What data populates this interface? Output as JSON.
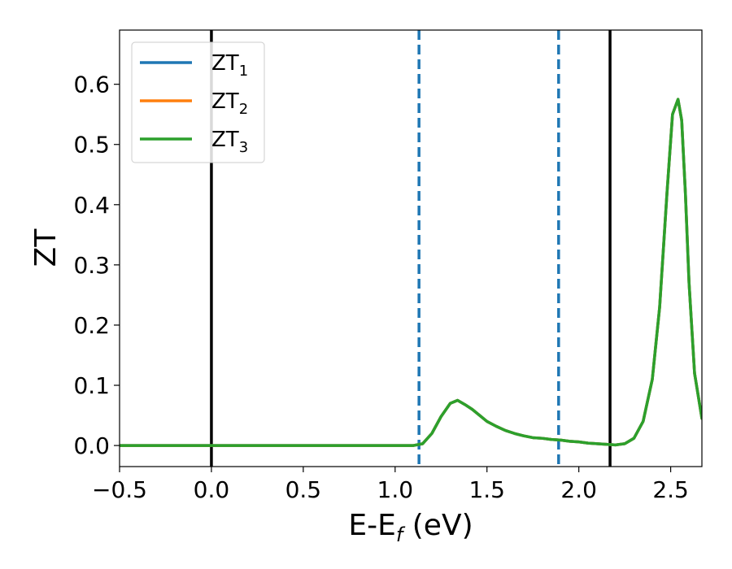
{
  "chart_data": {
    "type": "line",
    "xlabel": "E-E",
    "xlabel_sub": "f",
    "xlabel_unit": " (eV)",
    "ylabel": "ZT",
    "xlim": [
      -0.5,
      2.67
    ],
    "ylim": [
      -0.035,
      0.69
    ],
    "x_ticks": [
      -0.5,
      0.0,
      0.5,
      1.0,
      1.5,
      2.0,
      2.5
    ],
    "x_tick_labels": [
      "−0.5",
      "0.0",
      "0.5",
      "1.0",
      "1.5",
      "2.0",
      "2.5"
    ],
    "y_ticks": [
      0.0,
      0.1,
      0.2,
      0.3,
      0.4,
      0.5,
      0.6
    ],
    "y_tick_labels": [
      "0.0",
      "0.1",
      "0.2",
      "0.3",
      "0.4",
      "0.5",
      "0.6"
    ],
    "grid": false,
    "legend_position": "top-left",
    "vertical_lines": [
      {
        "x": 0.0,
        "style": "solid",
        "color": "#000000"
      },
      {
        "x": 1.13,
        "style": "dashed",
        "color": "#1f77b4"
      },
      {
        "x": 1.89,
        "style": "dashed",
        "color": "#1f77b4"
      },
      {
        "x": 2.17,
        "style": "solid",
        "color": "#000000"
      }
    ],
    "x": [
      -0.5,
      0.0,
      0.5,
      1.0,
      1.1,
      1.15,
      1.2,
      1.25,
      1.3,
      1.34,
      1.38,
      1.42,
      1.46,
      1.5,
      1.55,
      1.6,
      1.65,
      1.7,
      1.75,
      1.8,
      1.85,
      1.9,
      1.95,
      2.0,
      2.05,
      2.1,
      2.15,
      2.2,
      2.25,
      2.3,
      2.35,
      2.4,
      2.44,
      2.48,
      2.51,
      2.54,
      2.56,
      2.58,
      2.6,
      2.63,
      2.67
    ],
    "series": [
      {
        "name": "ZT",
        "sub": "1",
        "color": "#1f77b4",
        "values": [
          0.0,
          0.0,
          0.0,
          0.0,
          0.0,
          0.003,
          0.02,
          0.048,
          0.07,
          0.075,
          0.068,
          0.06,
          0.05,
          0.04,
          0.032,
          0.025,
          0.02,
          0.016,
          0.013,
          0.012,
          0.01,
          0.009,
          0.007,
          0.006,
          0.004,
          0.003,
          0.002,
          0.001,
          0.003,
          0.012,
          0.04,
          0.11,
          0.23,
          0.42,
          0.55,
          0.575,
          0.54,
          0.42,
          0.27,
          0.12,
          0.045
        ]
      },
      {
        "name": "ZT",
        "sub": "2",
        "color": "#ff7f0e",
        "values": [
          0.0,
          0.0,
          0.0,
          0.0,
          0.0,
          0.003,
          0.02,
          0.048,
          0.07,
          0.075,
          0.068,
          0.06,
          0.05,
          0.04,
          0.032,
          0.025,
          0.02,
          0.016,
          0.013,
          0.012,
          0.01,
          0.009,
          0.007,
          0.006,
          0.004,
          0.003,
          0.002,
          0.001,
          0.003,
          0.012,
          0.04,
          0.11,
          0.23,
          0.42,
          0.55,
          0.575,
          0.54,
          0.42,
          0.27,
          0.12,
          0.045
        ]
      },
      {
        "name": "ZT",
        "sub": "3",
        "color": "#2ca02c",
        "values": [
          0.0,
          0.0,
          0.0,
          0.0,
          0.0,
          0.003,
          0.02,
          0.048,
          0.07,
          0.075,
          0.068,
          0.06,
          0.05,
          0.04,
          0.032,
          0.025,
          0.02,
          0.016,
          0.013,
          0.012,
          0.01,
          0.009,
          0.007,
          0.006,
          0.004,
          0.003,
          0.002,
          0.001,
          0.003,
          0.012,
          0.04,
          0.11,
          0.23,
          0.42,
          0.55,
          0.575,
          0.54,
          0.42,
          0.27,
          0.12,
          0.045
        ]
      }
    ]
  }
}
